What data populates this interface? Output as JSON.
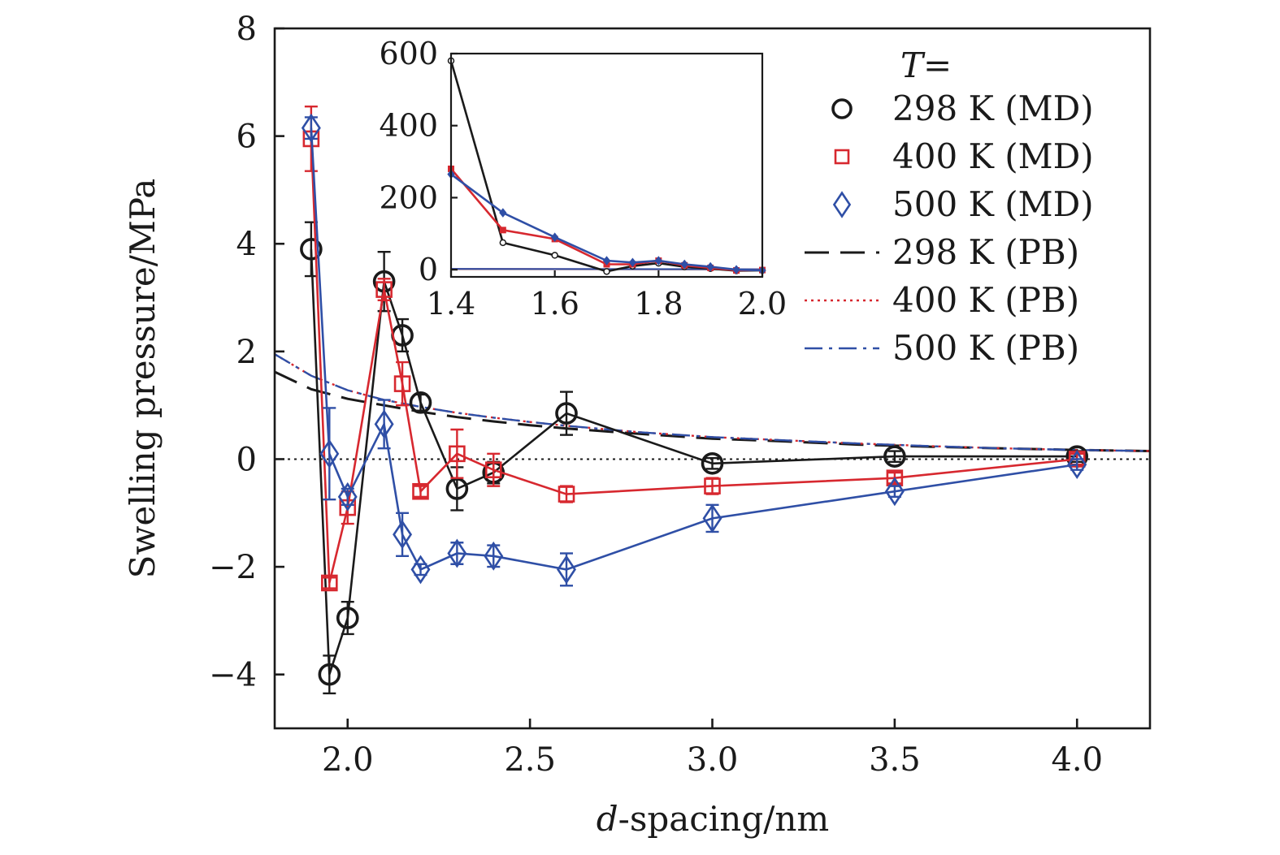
{
  "chart_data": [
    {
      "type": "line",
      "title": "",
      "xlabel": {
        "italic": "d",
        "rest": "-spacing/nm"
      },
      "ylabel": "Swelling pressure/MPa",
      "xlim": [
        1.8,
        4.2
      ],
      "ylim": [
        -5,
        8
      ],
      "xticks": [
        2.0,
        2.5,
        3.0,
        3.5,
        4.0
      ],
      "xtick_labels": [
        "2.0",
        "2.5",
        "3.0",
        "3.5",
        "4.0"
      ],
      "yticks": [
        -4,
        -2,
        0,
        2,
        4,
        6,
        8
      ],
      "ytick_labels": [
        "−4",
        "−2",
        "0",
        "2",
        "4",
        "6",
        "8"
      ],
      "zero_line": true,
      "grid": false,
      "legend": {
        "position": "top-right",
        "title": "T=",
        "entries": [
          {
            "label": "298 K (MD)",
            "series": 0
          },
          {
            "label": "400 K (MD)",
            "series": 1
          },
          {
            "label": "500 K (MD)",
            "series": 2
          },
          {
            "label": "298 K (PB)",
            "series": 3
          },
          {
            "label": "400 K (PB)",
            "series": 4
          },
          {
            "label": "500 K (PB)",
            "series": 5
          }
        ]
      },
      "series": [
        {
          "name": "298 K (MD)",
          "color": "#1a1a1a",
          "marker": "circle",
          "style": "solid",
          "x": [
            1.9,
            1.95,
            2.0,
            2.1,
            2.15,
            2.2,
            2.3,
            2.4,
            2.6,
            3.0,
            3.5,
            4.0
          ],
          "y": [
            3.9,
            -4.0,
            -2.95,
            3.3,
            2.3,
            1.05,
            -0.55,
            -0.25,
            0.85,
            -0.08,
            0.05,
            0.05
          ],
          "err": [
            0.5,
            0.35,
            0.3,
            0.55,
            0.3,
            0.15,
            0.4,
            0.2,
            0.4,
            0.1,
            0.1,
            0.1
          ]
        },
        {
          "name": "400 K (MD)",
          "color": "#d7282f",
          "marker": "square",
          "style": "solid",
          "x": [
            1.9,
            1.95,
            2.0,
            2.1,
            2.15,
            2.2,
            2.3,
            2.4,
            2.6,
            3.0,
            3.5,
            4.0
          ],
          "y": [
            5.95,
            -2.3,
            -0.9,
            3.15,
            1.4,
            -0.6,
            0.1,
            -0.2,
            -0.65,
            -0.5,
            -0.35,
            0.0
          ],
          "err": [
            0.6,
            0.1,
            0.3,
            0.2,
            0.4,
            0.1,
            0.45,
            0.3,
            0.15,
            0.15,
            0.1,
            0.1
          ]
        },
        {
          "name": "500 K (MD)",
          "color": "#2f4fa6",
          "marker": "diamond",
          "style": "solid",
          "x": [
            1.9,
            1.95,
            2.0,
            2.1,
            2.15,
            2.2,
            2.3,
            2.4,
            2.6,
            3.0,
            3.5,
            4.0
          ],
          "y": [
            6.15,
            0.1,
            -0.7,
            0.65,
            -1.4,
            -2.05,
            -1.75,
            -1.8,
            -2.05,
            -1.1,
            -0.6,
            -0.1
          ],
          "err": [
            0.2,
            0.85,
            0.15,
            0.45,
            0.4,
            0.1,
            0.2,
            0.2,
            0.3,
            0.25,
            0.1,
            0.1
          ]
        },
        {
          "name": "298 K (PB)",
          "color": "#1a1a1a",
          "marker": "none",
          "style": "dashed",
          "x": [
            1.8,
            1.9,
            2.0,
            2.1,
            2.2,
            2.3,
            2.4,
            2.5,
            2.6,
            2.8,
            3.0,
            3.2,
            3.4,
            3.6,
            3.8,
            4.0,
            4.2
          ],
          "y": [
            1.62,
            1.3,
            1.12,
            1.0,
            0.88,
            0.78,
            0.7,
            0.63,
            0.57,
            0.47,
            0.38,
            0.33,
            0.27,
            0.23,
            0.2,
            0.17,
            0.15
          ]
        },
        {
          "name": "400 K (PB)",
          "color": "#d7282f",
          "marker": "none",
          "style": "dotted",
          "x": [
            1.8,
            1.9,
            2.0,
            2.1,
            2.2,
            2.3,
            2.4,
            2.5,
            2.6,
            2.8,
            3.0,
            3.2,
            3.4,
            3.6,
            3.8,
            4.0,
            4.2
          ],
          "y": [
            1.95,
            1.55,
            1.28,
            1.1,
            0.97,
            0.86,
            0.77,
            0.69,
            0.62,
            0.5,
            0.41,
            0.35,
            0.29,
            0.24,
            0.2,
            0.17,
            0.15
          ]
        },
        {
          "name": "500 K (PB)",
          "color": "#2f4fa6",
          "marker": "none",
          "style": "dashdot",
          "x": [
            1.8,
            1.9,
            2.0,
            2.1,
            2.2,
            2.3,
            2.4,
            2.5,
            2.6,
            2.8,
            3.0,
            3.2,
            3.4,
            3.6,
            3.8,
            4.0,
            4.2
          ],
          "y": [
            1.95,
            1.55,
            1.28,
            1.1,
            0.97,
            0.86,
            0.77,
            0.69,
            0.62,
            0.5,
            0.41,
            0.35,
            0.29,
            0.24,
            0.2,
            0.17,
            0.15
          ]
        }
      ]
    },
    {
      "type": "line",
      "title": "",
      "xlabel": "",
      "ylabel": "",
      "xlim": [
        1.4,
        2.0
      ],
      "ylim": [
        -20,
        600
      ],
      "xticks": [
        1.4,
        1.6,
        1.8,
        2.0
      ],
      "xtick_labels": [
        "1.4",
        "1.6",
        "1.8",
        "2.0"
      ],
      "yticks": [
        0,
        200,
        400,
        600
      ],
      "ytick_labels": [
        "0",
        "200",
        "400",
        "600"
      ],
      "grid": false,
      "series": [
        {
          "name": "298 K (MD)",
          "color": "#1a1a1a",
          "marker": "circle-small",
          "x": [
            1.4,
            1.5,
            1.6,
            1.7,
            1.75,
            1.8,
            1.85,
            1.9,
            1.95,
            2.0
          ],
          "y": [
            580,
            75,
            40,
            -5,
            10,
            18,
            8,
            3,
            -3,
            -2
          ]
        },
        {
          "name": "400 K (MD)",
          "color": "#d7282f",
          "marker": "square-small",
          "x": [
            1.4,
            1.5,
            1.6,
            1.7,
            1.75,
            1.8,
            1.85,
            1.9,
            1.95,
            2.0
          ],
          "y": [
            280,
            110,
            85,
            15,
            15,
            25,
            12,
            5,
            -2,
            -1
          ]
        },
        {
          "name": "500 K (MD)",
          "color": "#2f4fa6",
          "marker": "diamond-small",
          "x": [
            1.4,
            1.5,
            1.6,
            1.7,
            1.75,
            1.8,
            1.85,
            1.9,
            1.95,
            2.0
          ],
          "y": [
            265,
            158,
            90,
            25,
            20,
            25,
            15,
            8,
            0,
            -2
          ]
        },
        {
          "name": "298 K (PB)",
          "color": "#1a1a1a",
          "marker": "none",
          "x": [
            1.4,
            2.0
          ],
          "y": [
            1.6,
            0.8
          ]
        },
        {
          "name": "400 K (PB)",
          "color": "#d7282f",
          "marker": "none",
          "x": [
            1.4,
            2.0
          ],
          "y": [
            2.0,
            1.0
          ]
        },
        {
          "name": "500 K (PB)",
          "color": "#2f4fa6",
          "marker": "none",
          "x": [
            1.4,
            2.0
          ],
          "y": [
            2.4,
            1.2
          ]
        }
      ]
    }
  ]
}
